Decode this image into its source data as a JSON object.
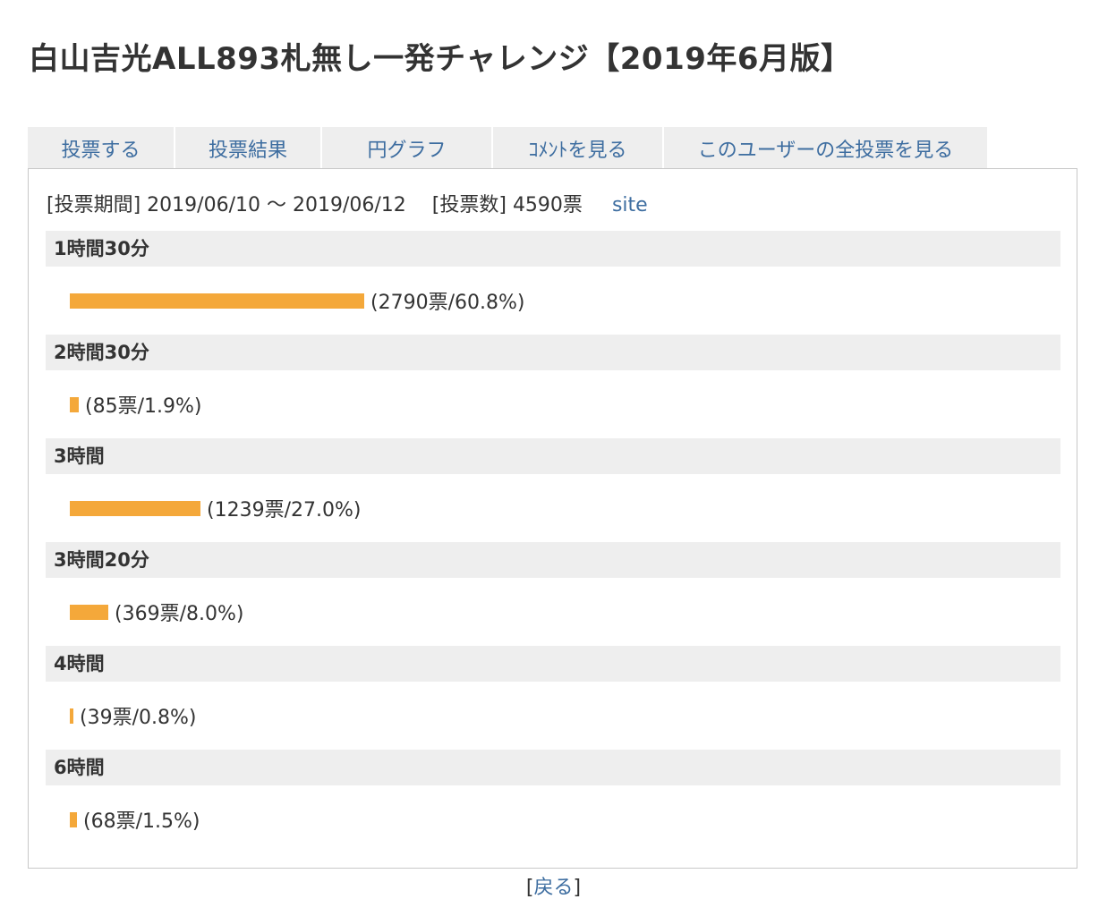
{
  "title": "白山吉光ALL893札無し一発チャレンジ【2019年6月版】",
  "tabs": [
    {
      "label": "投票する"
    },
    {
      "label": "投票結果"
    },
    {
      "label": "円グラフ"
    },
    {
      "label": "ｺﾒﾝﾄを見る"
    },
    {
      "label": "このユーザーの全投票を見る"
    }
  ],
  "info": {
    "period_label": "[投票期間]",
    "period_value": "2019/06/10 〜 2019/06/12",
    "count_label": "[投票数]",
    "count_value": "4590票",
    "site_link": "site"
  },
  "colors": {
    "bar": "#f4a83a",
    "link": "#3d6da0",
    "row_header_bg": "#eeeeee"
  },
  "results": [
    {
      "option": "1時間30分",
      "votes": 2790,
      "percent": 60.8,
      "label": "(2790票/60.8%)"
    },
    {
      "option": "2時間30分",
      "votes": 85,
      "percent": 1.9,
      "label": "(85票/1.9%)"
    },
    {
      "option": "3時間",
      "votes": 1239,
      "percent": 27.0,
      "label": "(1239票/27.0%)"
    },
    {
      "option": "3時間20分",
      "votes": 369,
      "percent": 8.0,
      "label": "(369票/8.0%)"
    },
    {
      "option": "4時間",
      "votes": 39,
      "percent": 0.8,
      "label": "(39票/0.8%)"
    },
    {
      "option": "6時間",
      "votes": 68,
      "percent": 1.5,
      "label": "(68票/1.5%)"
    }
  ],
  "footer": {
    "back_open": "[",
    "back_label": "戻る",
    "back_close": "]"
  }
}
